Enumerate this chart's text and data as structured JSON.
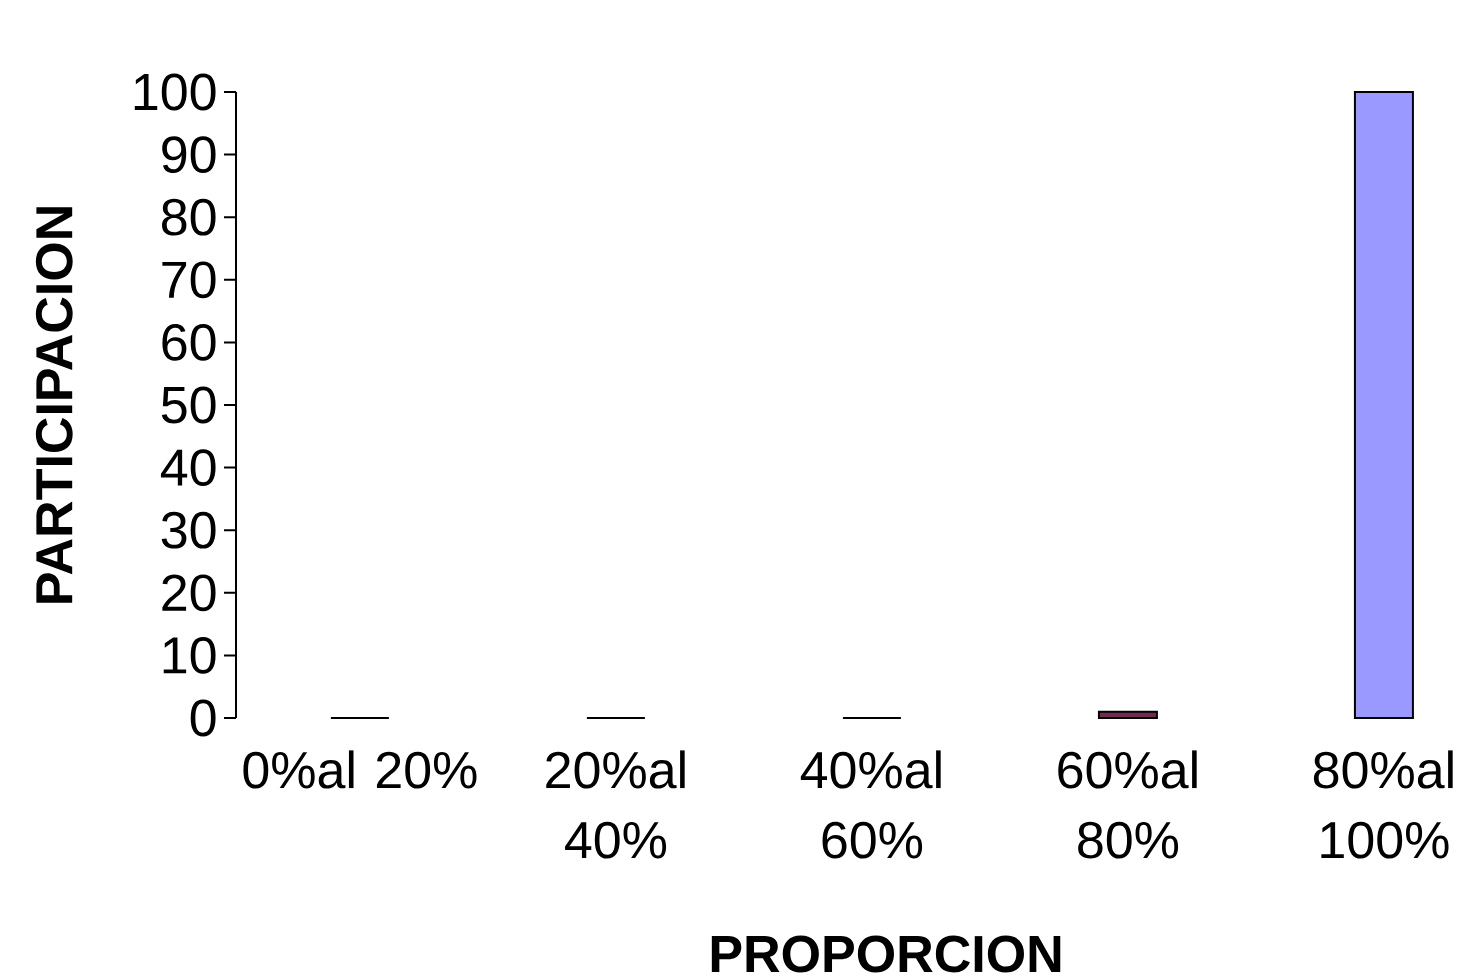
{
  "chart_data": {
    "type": "bar",
    "categories": [
      "0%al 20%",
      "20%al 40%",
      "40%al 60%",
      "60%al 80%",
      "80%al 100%"
    ],
    "values": [
      0,
      0,
      0,
      1,
      100
    ],
    "colors": [
      "#00c0c0",
      "#00c0c0",
      "#00c0c0",
      "#732a52",
      "#9999ff"
    ],
    "xlabel": "PROPORCION",
    "ylabel": "PARTICIPACION",
    "ylim": [
      0,
      100
    ],
    "yticks": [
      0,
      10,
      20,
      30,
      40,
      50,
      60,
      70,
      80,
      90,
      100
    ]
  }
}
